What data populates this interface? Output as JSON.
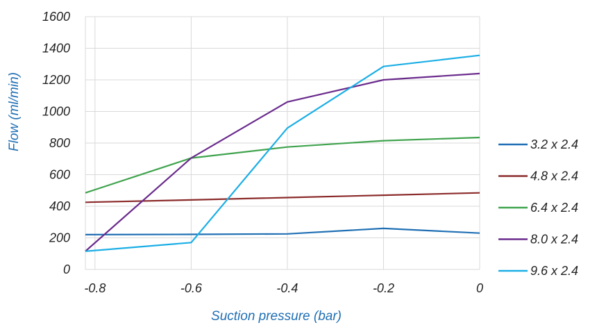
{
  "chart_data": {
    "type": "line",
    "xlabel": "Suction pressure (bar)",
    "ylabel": "Flow (ml/min)",
    "x": [
      -0.82,
      -0.6,
      -0.4,
      -0.2,
      0
    ],
    "xlim": [
      -0.82,
      0
    ],
    "ylim": [
      0,
      1600
    ],
    "xticks": [
      -0.8,
      -0.6,
      -0.4,
      -0.2,
      0
    ],
    "xtick_labels": [
      "-0.8",
      "-0.6",
      "-0.4",
      "-0.2",
      "0"
    ],
    "yticks": [
      0,
      200,
      400,
      600,
      800,
      1000,
      1200,
      1400,
      1600
    ],
    "ytick_labels": [
      "0",
      "200",
      "400",
      "600",
      "800",
      "1000",
      "1200",
      "1400",
      "1600"
    ],
    "grid": true,
    "legend_position": "right",
    "series": [
      {
        "name": "3.2 x 2.4",
        "color": "#1f6fb4",
        "values": [
          220,
          222,
          225,
          260,
          230
        ]
      },
      {
        "name": "4.8 x 2.4",
        "color": "#8b2a2a",
        "values": [
          425,
          440,
          455,
          470,
          485
        ]
      },
      {
        "name": "6.4 x 2.4",
        "color": "#3fa34d",
        "values": [
          485,
          705,
          775,
          815,
          835
        ]
      },
      {
        "name": "8.0 x 2.4",
        "color": "#6a2a8c",
        "values": [
          115,
          705,
          1060,
          1200,
          1240
        ]
      },
      {
        "name": "9.6 x 2.4",
        "color": "#1aaee5",
        "values": [
          115,
          170,
          895,
          1285,
          1355
        ]
      }
    ]
  }
}
